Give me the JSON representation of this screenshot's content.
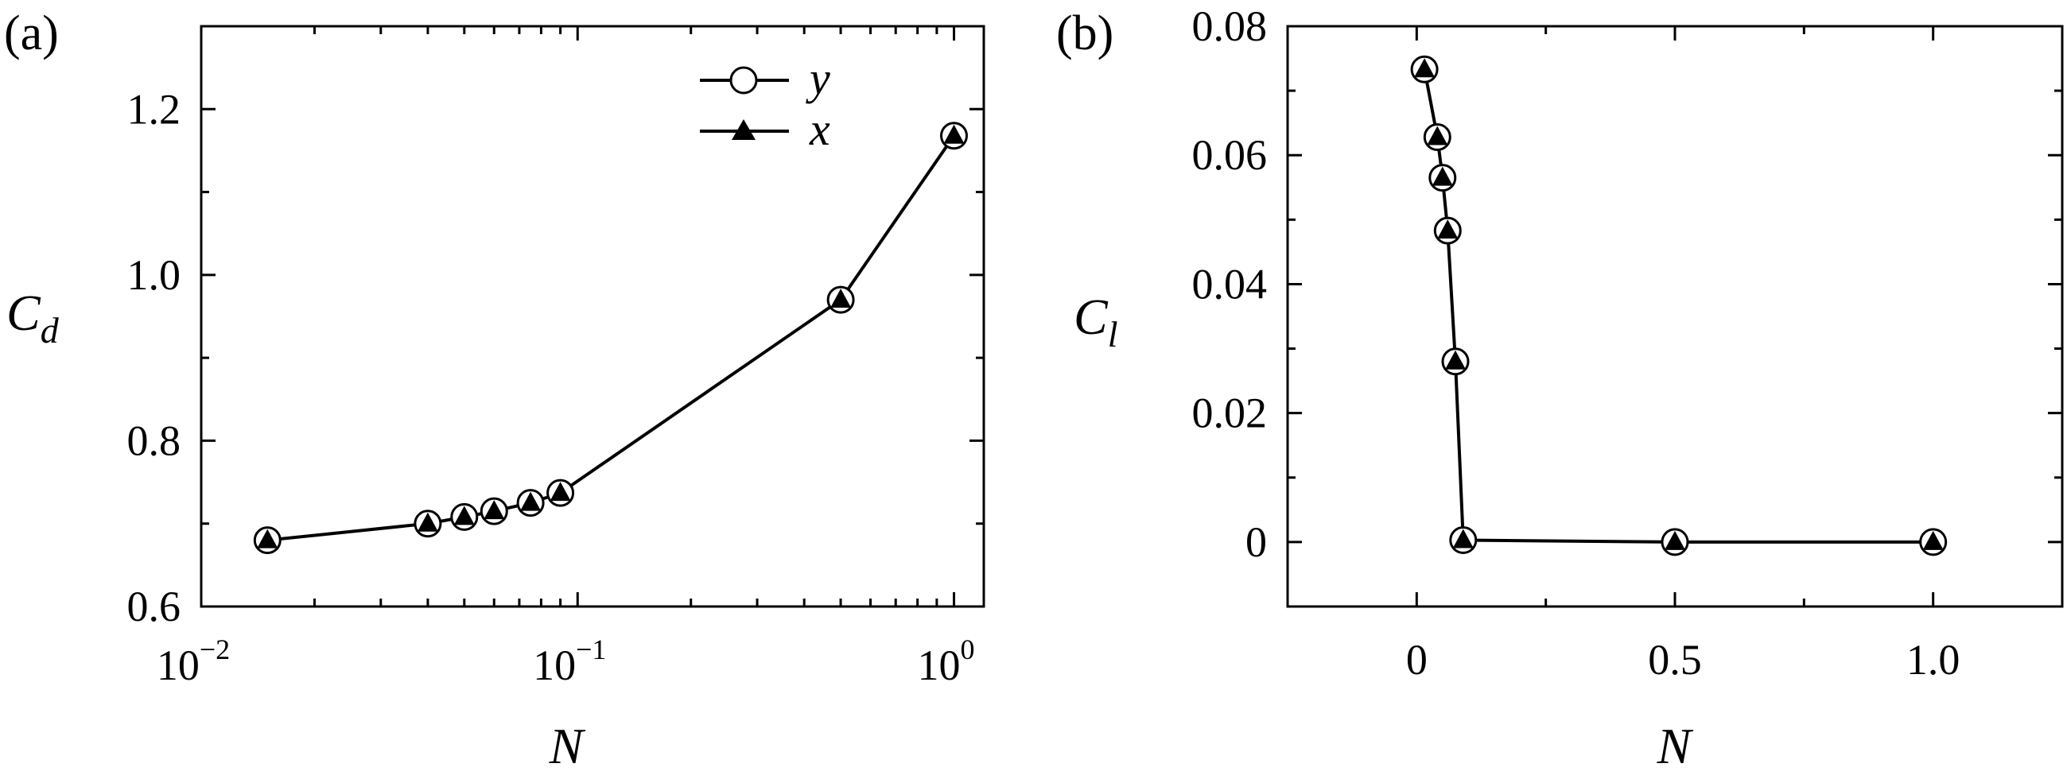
{
  "chart_data": [
    {
      "type": "line",
      "panel_label": "(a)",
      "xlabel": "N",
      "ylabel": "C",
      "ylabel_sub": "d",
      "x_scale": "log",
      "xlim": [
        0.01,
        1.2
      ],
      "ylim": [
        0.6,
        1.3
      ],
      "x_ticks": [
        {
          "value": 0.01,
          "base": "10",
          "exp": "−2"
        },
        {
          "value": 0.1,
          "base": "10",
          "exp": "−1"
        },
        {
          "value": 1,
          "base": "10",
          "exp": "0"
        }
      ],
      "y_ticks": [
        {
          "value": 0.6,
          "label": "0.6"
        },
        {
          "value": 0.8,
          "label": "0.8"
        },
        {
          "value": 1.0,
          "label": "1.0"
        },
        {
          "value": 1.2,
          "label": "1.2"
        }
      ],
      "grid": false,
      "legend_position": "top-center",
      "series": [
        {
          "name": "y",
          "marker": "open-circle",
          "x": [
            0.015,
            0.04,
            0.05,
            0.06,
            0.075,
            0.09,
            0.5,
            1.0
          ],
          "y": [
            0.68,
            0.7,
            0.708,
            0.715,
            0.725,
            0.737,
            0.97,
            1.168
          ]
        },
        {
          "name": "x",
          "marker": "filled-triangle",
          "x": [
            0.015,
            0.04,
            0.05,
            0.06,
            0.075,
            0.09,
            0.5,
            1.0
          ],
          "y": [
            0.68,
            0.7,
            0.708,
            0.715,
            0.725,
            0.737,
            0.97,
            1.168
          ]
        }
      ]
    },
    {
      "type": "line",
      "panel_label": "(b)",
      "xlabel": "N",
      "ylabel": "C",
      "ylabel_sub": "l",
      "x_scale": "linear",
      "xlim": [
        -0.25,
        1.25
      ],
      "ylim": [
        -0.01,
        0.08
      ],
      "x_ticks": [
        {
          "value": 0,
          "label": "0"
        },
        {
          "value": 0.5,
          "label": "0.5"
        },
        {
          "value": 1.0,
          "label": "1.0"
        }
      ],
      "y_ticks": [
        {
          "value": 0,
          "label": "0"
        },
        {
          "value": 0.02,
          "label": "0.02"
        },
        {
          "value": 0.04,
          "label": "0.04"
        },
        {
          "value": 0.06,
          "label": "0.06"
        },
        {
          "value": 0.08,
          "label": "0.08"
        }
      ],
      "grid": false,
      "series": [
        {
          "name": "y",
          "marker": "open-circle",
          "x": [
            0.015,
            0.04,
            0.05,
            0.06,
            0.075,
            0.09,
            0.5,
            1.0
          ],
          "y": [
            0.0733,
            0.0628,
            0.0565,
            0.0483,
            0.028,
            0.0003,
            0.0,
            0.0
          ]
        },
        {
          "name": "x",
          "marker": "filled-triangle",
          "x": [
            0.015,
            0.04,
            0.05,
            0.06,
            0.075,
            0.09,
            0.5,
            1.0
          ],
          "y": [
            0.0733,
            0.0628,
            0.0565,
            0.0483,
            0.028,
            0.0003,
            0.0,
            0.0
          ]
        }
      ]
    }
  ]
}
